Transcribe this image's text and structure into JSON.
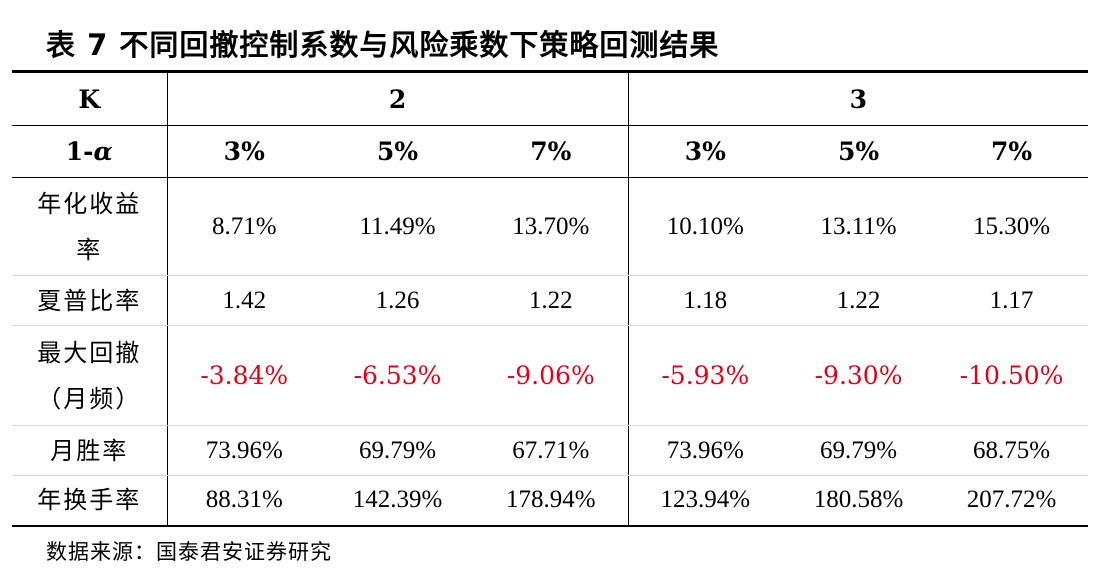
{
  "title": "表 7 不同回撤控制系数与风险乘数下策略回测结果",
  "header": {
    "k_label": "K",
    "k_values": [
      "2",
      "3"
    ],
    "alpha_prefix": "1-",
    "alpha_symbol": "α",
    "alpha_values": [
      "3%",
      "5%",
      "7%",
      "3%",
      "5%",
      "7%"
    ]
  },
  "rows": [
    {
      "label": "年化收益率",
      "values": [
        "8.71%",
        "11.49%",
        "13.70%",
        "10.10%",
        "13.11%",
        "15.30%"
      ]
    },
    {
      "label": "夏普比率",
      "values": [
        "1.42",
        "1.26",
        "1.22",
        "1.18",
        "1.22",
        "1.17"
      ]
    },
    {
      "label": "最大回撤（月频）",
      "values": [
        "-3.84%",
        "-6.53%",
        "-9.06%",
        "-5.93%",
        "-9.30%",
        "-10.50%"
      ]
    },
    {
      "label": "月胜率",
      "values": [
        "73.96%",
        "69.79%",
        "67.71%",
        "73.96%",
        "69.79%",
        "68.75%"
      ]
    },
    {
      "label": "年换手率",
      "values": [
        "88.31%",
        "142.39%",
        "178.94%",
        "123.94%",
        "180.58%",
        "207.72%"
      ]
    }
  ],
  "colors": {
    "negative": "#e5001a"
  },
  "source": "数据来源：国泰君安证券研究"
}
